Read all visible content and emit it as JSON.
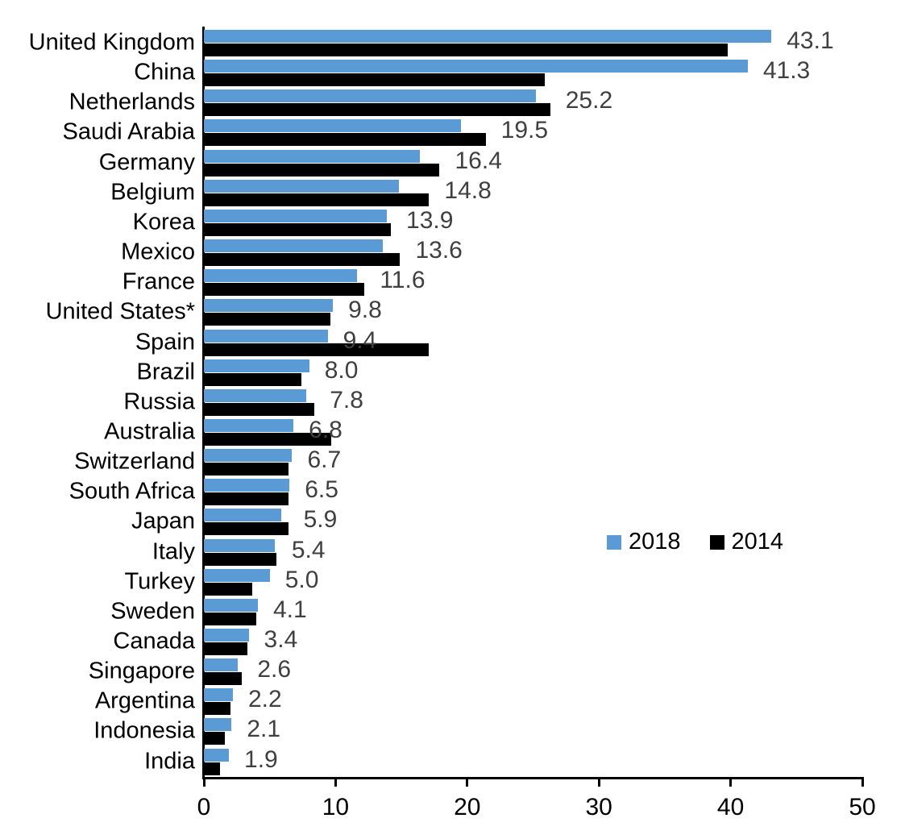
{
  "chart_data": {
    "type": "bar",
    "orientation": "horizontal",
    "title": "",
    "xlabel": "",
    "ylabel": "",
    "xlim": [
      0,
      50
    ],
    "x_ticks": [
      "0",
      "10",
      "20",
      "30",
      "40",
      "50"
    ],
    "grid": false,
    "legend_position": "middle-right",
    "categories": [
      "United Kingdom",
      "China",
      "Netherlands",
      "Saudi Arabia",
      "Germany",
      "Belgium",
      "Korea",
      "Mexico",
      "France",
      "United States*",
      "Spain",
      "Brazil",
      "Russia",
      "Australia",
      "Switzerland",
      "South Africa",
      "Japan",
      "Italy",
      "Turkey",
      "Sweden",
      "Canada",
      "Singapore",
      "Argentina",
      "Indonesia",
      "India"
    ],
    "series": [
      {
        "name": "2018",
        "color": "#5B9BD5",
        "values": [
          43.1,
          41.3,
          25.2,
          19.5,
          16.4,
          14.8,
          13.9,
          13.6,
          11.6,
          9.8,
          9.4,
          8.0,
          7.8,
          6.8,
          6.7,
          6.5,
          5.9,
          5.4,
          5.0,
          4.1,
          3.4,
          2.6,
          2.2,
          2.1,
          1.9
        ]
      },
      {
        "name": "2014",
        "color": "#000000",
        "values": [
          39.8,
          25.9,
          26.3,
          21.4,
          17.9,
          17.1,
          14.2,
          14.9,
          12.2,
          9.6,
          17.1,
          7.4,
          8.4,
          9.7,
          6.4,
          6.4,
          6.4,
          5.5,
          3.7,
          4.0,
          3.3,
          2.9,
          2.0,
          1.6,
          1.2
        ]
      }
    ],
    "data_labels": [
      "43.1",
      "41.3",
      "25.2",
      "19.5",
      "16.4",
      "14.8",
      "13.9",
      "13.6",
      "11.6",
      "9.8",
      "9.4",
      "8.0",
      "7.8",
      "6.8",
      "6.7",
      "6.5",
      "5.9",
      "5.4",
      "5.0",
      "4.1",
      "3.4",
      "2.6",
      "2.2",
      "2.1",
      "1.9"
    ],
    "legend": {
      "entries": [
        "2018",
        "2014"
      ]
    }
  }
}
